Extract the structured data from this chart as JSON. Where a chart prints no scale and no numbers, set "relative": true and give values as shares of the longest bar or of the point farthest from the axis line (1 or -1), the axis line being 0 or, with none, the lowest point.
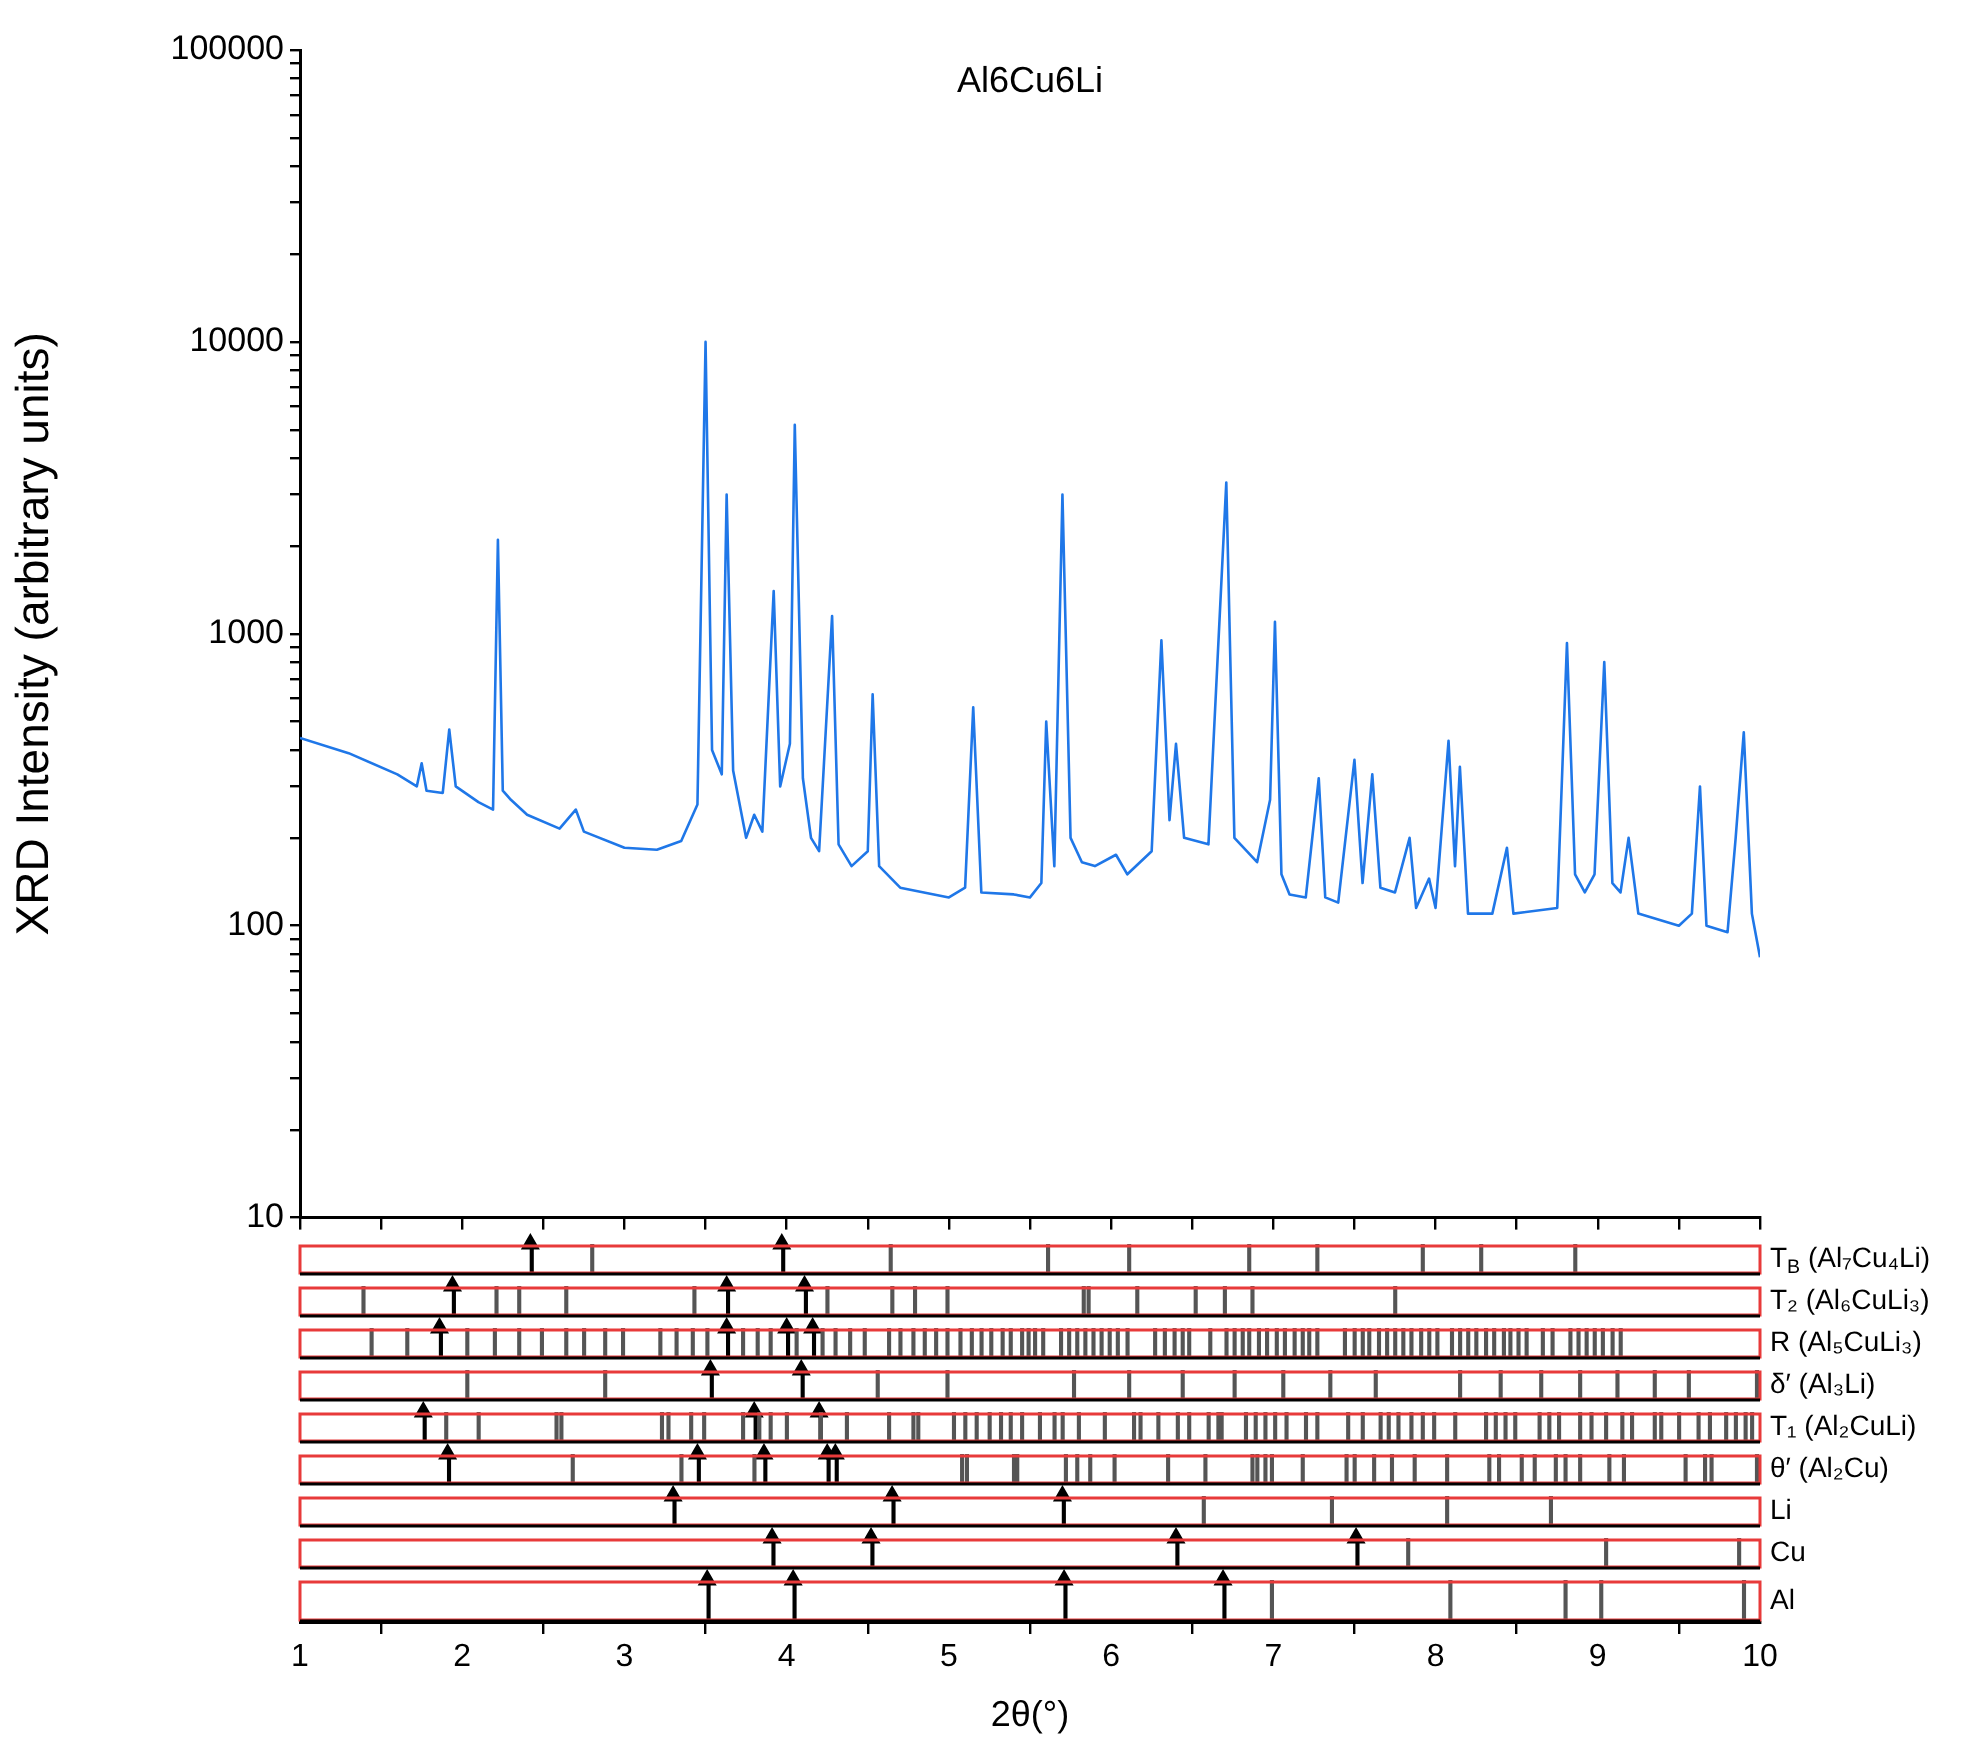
{
  "chart_data": [
    {
      "type": "line",
      "title": "Al6Cu6Li",
      "ylabel": "XRD Intensity (arbitrary units)",
      "log": true,
      "xlim": [
        1,
        10
      ],
      "ylim": [
        10,
        100000
      ],
      "tick_labels": "y",
      "legend": false,
      "marker": "none",
      "line_style": "solid",
      "xticks": [
        1,
        {
          "value": 1.5,
          "label": null
        },
        2,
        {
          "value": 2.5,
          "label": null
        },
        3,
        {
          "value": 3.5,
          "label": null
        },
        4,
        {
          "value": 4.5,
          "label": null
        },
        5,
        {
          "value": 5.5,
          "label": null
        },
        6,
        {
          "value": 6.5,
          "label": null
        },
        7,
        {
          "value": 7.5,
          "label": null
        },
        8,
        {
          "value": 8.5,
          "label": null
        },
        9,
        {
          "value": 9.5,
          "label": null
        },
        10
      ],
      "yticks": [
        10,
        {
          "value": 20,
          "label": null
        },
        {
          "value": 30,
          "label": null
        },
        {
          "value": 40,
          "label": null
        },
        {
          "value": 50,
          "label": null
        },
        {
          "value": 60,
          "label": null
        },
        {
          "value": 70,
          "label": null
        },
        {
          "value": 80,
          "label": null
        },
        {
          "value": 90,
          "label": null
        },
        100,
        {
          "value": 200,
          "label": null
        },
        {
          "value": 300,
          "label": null
        },
        {
          "value": 400,
          "label": null
        },
        {
          "value": 500,
          "label": null
        },
        {
          "value": 600,
          "label": null
        },
        {
          "value": 700,
          "label": null
        },
        {
          "value": 800,
          "label": null
        },
        {
          "value": 900,
          "label": null
        },
        1000,
        {
          "value": 2000,
          "label": null
        },
        {
          "value": 3000,
          "label": null
        },
        {
          "value": 4000,
          "label": null
        },
        {
          "value": 5000,
          "label": null
        },
        {
          "value": 6000,
          "label": null
        },
        {
          "value": 7000,
          "label": null
        },
        {
          "value": 8000,
          "label": null
        },
        {
          "value": 9000,
          "label": null
        },
        10000,
        {
          "value": 20000,
          "label": null
        },
        {
          "value": 30000,
          "label": null
        },
        {
          "value": 40000,
          "label": null
        },
        {
          "value": 50000,
          "label": null
        },
        {
          "value": 60000,
          "label": null
        },
        {
          "value": 70000,
          "label": null
        },
        {
          "value": 80000,
          "label": null
        },
        {
          "value": 90000,
          "label": null
        },
        100000
      ],
      "series": [
        {
          "color": "#1f77e8",
          "x": [
            1,
            1.3,
            1.6,
            1.72,
            1.75,
            1.78,
            1.88,
            1.92,
            1.96,
            2.1,
            2.19,
            2.22,
            2.25,
            2.3,
            2.4,
            2.6,
            2.7,
            2.75,
            3.0,
            3.2,
            3.35,
            3.45,
            3.5,
            3.54,
            3.6,
            3.63,
            3.67,
            3.75,
            3.8,
            3.85,
            3.92,
            3.96,
            4.02,
            4.05,
            4.1,
            4.15,
            4.2,
            4.28,
            4.32,
            4.4,
            4.5,
            4.53,
            4.57,
            4.7,
            5.0,
            5.1,
            5.15,
            5.2,
            5.4,
            5.5,
            5.57,
            5.6,
            5.65,
            5.7,
            5.75,
            5.82,
            5.9,
            6.03,
            6.1,
            6.25,
            6.31,
            6.36,
            6.4,
            6.45,
            6.6,
            6.71,
            6.76,
            6.9,
            6.98,
            7.01,
            7.05,
            7.1,
            7.2,
            7.28,
            7.32,
            7.4,
            7.5,
            7.55,
            7.61,
            7.66,
            7.75,
            7.84,
            7.88,
            7.96,
            8.0,
            8.08,
            8.12,
            8.15,
            8.2,
            8.35,
            8.44,
            8.48,
            8.75,
            8.81,
            8.86,
            8.92,
            8.98,
            9.04,
            9.09,
            9.14,
            9.19,
            9.25,
            9.5,
            9.58,
            9.63,
            9.67,
            9.8,
            9.85,
            9.9,
            9.95,
            10
          ],
          "values": [
            440,
            390,
            330,
            300,
            360,
            290,
            285,
            470,
            300,
            265,
            250,
            2100,
            290,
            270,
            240,
            215,
            250,
            210,
            185,
            182,
            195,
            260,
            10000,
            400,
            330,
            3000,
            340,
            200,
            240,
            210,
            1400,
            300,
            420,
            5200,
            320,
            200,
            180,
            1150,
            190,
            160,
            180,
            620,
            160,
            135,
            125,
            135,
            560,
            130,
            128,
            125,
            140,
            500,
            160,
            3000,
            200,
            165,
            160,
            175,
            150,
            180,
            950,
            230,
            420,
            200,
            190,
            3300,
            200,
            165,
            270,
            1100,
            150,
            128,
            125,
            320,
            125,
            120,
            370,
            140,
            330,
            135,
            130,
            200,
            115,
            145,
            115,
            430,
            160,
            350,
            110,
            110,
            185,
            110,
            115,
            930,
            150,
            130,
            150,
            800,
            140,
            130,
            200,
            110,
            100,
            110,
            300,
            100,
            95,
            200,
            460,
            110,
            78
          ]
        }
      ]
    },
    {
      "type": "bar",
      "relative": true,
      "xlim": [
        1,
        10
      ],
      "tick_labels": false,
      "legend": false,
      "series": [
        {
          "name": "T$_{B}$ (Al₇Cu₄Li)",
          "color": "#555555",
          "x": [
            2.81,
            4.65,
            5.62,
            6.12,
            6.86,
            7.28,
            7.93,
            8.29,
            8.87
          ],
          "values": [
            1,
            1,
            1,
            1,
            1,
            1,
            1,
            1,
            1
          ]
        },
        {
          "type": "lollipop",
          "marker": "triangle",
          "color": "#000000",
          "x": [
            2.42,
            3.97
          ],
          "values": [
            1,
            1
          ]
        }
      ]
    },
    {
      "type": "bar",
      "relative": true,
      "xlim": [
        1,
        10
      ],
      "tick_labels": false,
      "legend": false,
      "series": [
        {
          "name": "T₂ (Al₆CuLi₃)",
          "color": "#555555",
          "x": [
            1.4,
            2.22,
            2.36,
            2.65,
            3.44,
            4.26,
            4.66,
            4.8,
            5.0,
            5.84,
            5.87,
            6.17,
            6.53,
            6.71,
            6.88,
            7.76
          ],
          "values": [
            1,
            1,
            1,
            1,
            1,
            1,
            1,
            1,
            1,
            1,
            1,
            1,
            1,
            1,
            1,
            1
          ]
        },
        {
          "type": "lollipop",
          "marker": "triangle",
          "color": "#000000",
          "x": [
            1.94,
            3.63,
            4.11
          ],
          "values": [
            1,
            1,
            1
          ]
        }
      ]
    },
    {
      "type": "bar",
      "relative": true,
      "xlim": [
        1,
        10
      ],
      "tick_labels": false,
      "legend": false,
      "series": [
        {
          "name": "R (Al₅CuLi₃)",
          "color": "#555555",
          "x": [
            1.45,
            1.67,
            2.04,
            2.21,
            2.36,
            2.5,
            2.65,
            2.76,
            2.89,
            3.0,
            3.23,
            3.33,
            3.43,
            3.52,
            3.74,
            3.83,
            3.91,
            4.07,
            4.23,
            4.31,
            4.4,
            4.49,
            4.64,
            4.71,
            4.79,
            4.86,
            4.93,
            5.0,
            5.08,
            5.15,
            5.21,
            5.27,
            5.34,
            5.39,
            5.46,
            5.5,
            5.54,
            5.59,
            5.7,
            5.75,
            5.8,
            5.85,
            5.9,
            5.95,
            6.0,
            6.05,
            6.11,
            6.28,
            6.34,
            6.4,
            6.45,
            6.49,
            6.62,
            6.72,
            6.77,
            6.82,
            6.86,
            6.92,
            6.97,
            7.03,
            7.08,
            7.14,
            7.19,
            7.23,
            7.28,
            7.45,
            7.51,
            7.56,
            7.6,
            7.66,
            7.71,
            7.76,
            7.81,
            7.86,
            7.92,
            7.97,
            8.02,
            8.11,
            8.16,
            8.21,
            8.26,
            8.32,
            8.37,
            8.43,
            8.47,
            8.52,
            8.57,
            8.67,
            8.73,
            8.84,
            8.89,
            8.94,
            8.99,
            9.04,
            9.1,
            9.15
          ],
          "values": [
            1,
            1,
            1,
            1,
            1,
            1,
            1,
            1,
            1,
            1,
            1,
            1,
            1,
            1,
            1,
            1,
            1,
            1,
            1,
            1,
            1,
            1,
            1,
            1,
            1,
            1,
            1,
            1,
            1,
            1,
            1,
            1,
            1,
            1,
            1,
            1,
            1,
            1,
            1,
            1,
            1,
            1,
            1,
            1,
            1,
            1,
            1,
            1,
            1,
            1,
            1,
            1,
            1,
            1,
            1,
            1,
            1,
            1,
            1,
            1,
            1,
            1,
            1,
            1,
            1,
            1,
            1,
            1,
            1,
            1,
            1,
            1,
            1,
            1,
            1,
            1,
            1,
            1,
            1,
            1,
            1,
            1,
            1,
            1,
            1,
            1,
            1,
            1,
            1,
            1,
            1,
            1,
            1,
            1,
            1,
            1
          ]
        },
        {
          "type": "lollipop",
          "marker": "triangle",
          "color": "#000000",
          "x": [
            1.86,
            3.63,
            4.0,
            4.16
          ],
          "values": [
            1,
            1,
            1,
            1
          ]
        }
      ]
    },
    {
      "type": "bar",
      "relative": true,
      "xlim": [
        1,
        10
      ],
      "tick_labels": false,
      "legend": false,
      "series": [
        {
          "name": "δ′ (Al₃Li)",
          "color": "#555555",
          "x": [
            2.04,
            2.89,
            4.57,
            5.0,
            5.78,
            6.12,
            6.45,
            6.77,
            7.07,
            7.36,
            7.64,
            8.16,
            8.41,
            8.66,
            8.9,
            9.13,
            9.36,
            9.57,
            9.99
          ],
          "values": [
            1,
            1,
            1,
            1,
            1,
            1,
            1,
            1,
            1,
            1,
            1,
            1,
            1,
            1,
            1,
            1,
            1,
            1,
            1
          ]
        },
        {
          "type": "lollipop",
          "marker": "triangle",
          "color": "#000000",
          "x": [
            3.53,
            4.09
          ],
          "values": [
            1,
            1
          ]
        }
      ]
    },
    {
      "type": "bar",
      "relative": true,
      "xlim": [
        1,
        10
      ],
      "tick_labels": false,
      "legend": false,
      "series": [
        {
          "name": "T₁ (Al₂CuLi)",
          "color": "#555555",
          "x": [
            1.91,
            2.11,
            2.59,
            2.62,
            3.24,
            3.28,
            3.42,
            3.5,
            3.74,
            3.84,
            3.91,
            4.01,
            4.22,
            4.38,
            4.64,
            4.79,
            4.82,
            5.04,
            5.11,
            5.18,
            5.26,
            5.33,
            5.39,
            5.46,
            5.57,
            5.66,
            5.71,
            5.81,
            5.97,
            6.15,
            6.19,
            6.3,
            6.42,
            6.49,
            6.61,
            6.67,
            6.69,
            6.84,
            6.9,
            6.96,
            7.02,
            7.09,
            7.21,
            7.28,
            7.47,
            7.56,
            7.67,
            7.72,
            7.78,
            7.86,
            7.93,
            8.0,
            8.13,
            8.32,
            8.38,
            8.44,
            8.5,
            8.65,
            8.71,
            8.77,
            8.9,
            8.97,
            9.06,
            9.16,
            9.22,
            9.36,
            9.4,
            9.51,
            9.63,
            9.7,
            9.8,
            9.86,
            9.92,
            9.96
          ],
          "values": [
            1,
            1,
            1,
            1,
            1,
            1,
            1,
            1,
            1,
            1,
            1,
            1,
            1,
            1,
            1,
            1,
            1,
            1,
            1,
            1,
            1,
            1,
            1,
            1,
            1,
            1,
            1,
            1,
            1,
            1,
            1,
            1,
            1,
            1,
            1,
            1,
            1,
            1,
            1,
            1,
            1,
            1,
            1,
            1,
            1,
            1,
            1,
            1,
            1,
            1,
            1,
            1,
            1,
            1,
            1,
            1,
            1,
            1,
            1,
            1,
            1,
            1,
            1,
            1,
            1,
            1,
            1,
            1,
            1,
            1,
            1,
            1,
            1,
            1
          ]
        },
        {
          "type": "lollipop",
          "marker": "triangle",
          "color": "#000000",
          "x": [
            1.76,
            3.8,
            4.2
          ],
          "values": [
            1,
            1,
            1
          ]
        }
      ]
    },
    {
      "type": "bar",
      "relative": true,
      "xlim": [
        1,
        10
      ],
      "tick_labels": false,
      "legend": false,
      "series": [
        {
          "name": "θ′ (Al₂Cu)",
          "color": "#555555",
          "x": [
            2.69,
            3.36,
            3.81,
            5.09,
            5.12,
            5.41,
            5.43,
            5.73,
            5.8,
            5.88,
            6.03,
            6.36,
            6.59,
            6.88,
            6.91,
            6.96,
            7.0,
            7.19,
            7.46,
            7.51,
            7.63,
            7.74,
            7.88,
            8.08,
            8.34,
            8.4,
            8.54,
            8.62,
            8.75,
            8.81,
            8.9,
            9.08,
            9.17,
            9.55,
            9.67,
            9.71,
            9.99
          ],
          "values": [
            1,
            1,
            1,
            1,
            1,
            1,
            1,
            1,
            1,
            1,
            1,
            1,
            1,
            1,
            1,
            1,
            1,
            1,
            1,
            1,
            1,
            1,
            1,
            1,
            1,
            1,
            1,
            1,
            1,
            1,
            1,
            1,
            1,
            1,
            1,
            1,
            1
          ]
        },
        {
          "type": "lollipop",
          "marker": "triangle",
          "color": "#000000",
          "x": [
            1.91,
            3.45,
            3.86,
            4.25,
            4.3
          ],
          "values": [
            1,
            1,
            1,
            1,
            1
          ]
        }
      ]
    },
    {
      "type": "bar",
      "relative": true,
      "xlim": [
        1,
        10
      ],
      "tick_labels": false,
      "legend": false,
      "series": [
        {
          "name": "Li",
          "color": "#555555",
          "x": [
            6.58,
            7.37,
            8.08,
            8.72
          ],
          "values": [
            1,
            1,
            1,
            1
          ]
        },
        {
          "type": "lollipop",
          "marker": "triangle",
          "color": "#000000",
          "x": [
            3.3,
            4.65,
            5.7
          ],
          "values": [
            1,
            1,
            1
          ]
        }
      ]
    },
    {
      "type": "bar",
      "relative": true,
      "xlim": [
        1,
        10
      ],
      "tick_labels": false,
      "legend": false,
      "series": [
        {
          "name": "Cu",
          "color": "#555555",
          "x": [
            7.84,
            9.06,
            9.88
          ],
          "values": [
            1,
            1,
            1
          ]
        },
        {
          "type": "lollipop",
          "marker": "triangle",
          "color": "#000000",
          "x": [
            3.91,
            4.52,
            6.4,
            7.51
          ],
          "values": [
            1,
            1,
            1,
            1
          ]
        }
      ]
    },
    {
      "type": "bar",
      "relative": true,
      "xlim": [
        1,
        10
      ],
      "tick_labels": "x",
      "legend": false,
      "xlabel": "2θ(°)",
      "xticks": [
        1,
        2,
        3,
        4,
        5,
        6,
        7,
        8,
        9,
        10
      ],
      "series": [
        {
          "name": "Al",
          "color": "#555555",
          "x": [
            7.0,
            8.1,
            8.81,
            9.03,
            9.91
          ],
          "values": [
            1,
            1,
            1,
            1,
            1
          ]
        },
        {
          "type": "lollipop",
          "marker": "triangle",
          "color": "#000000",
          "x": [
            3.51,
            4.04,
            5.71,
            6.69
          ],
          "values": [
            1,
            1,
            1,
            1
          ]
        }
      ]
    }
  ]
}
